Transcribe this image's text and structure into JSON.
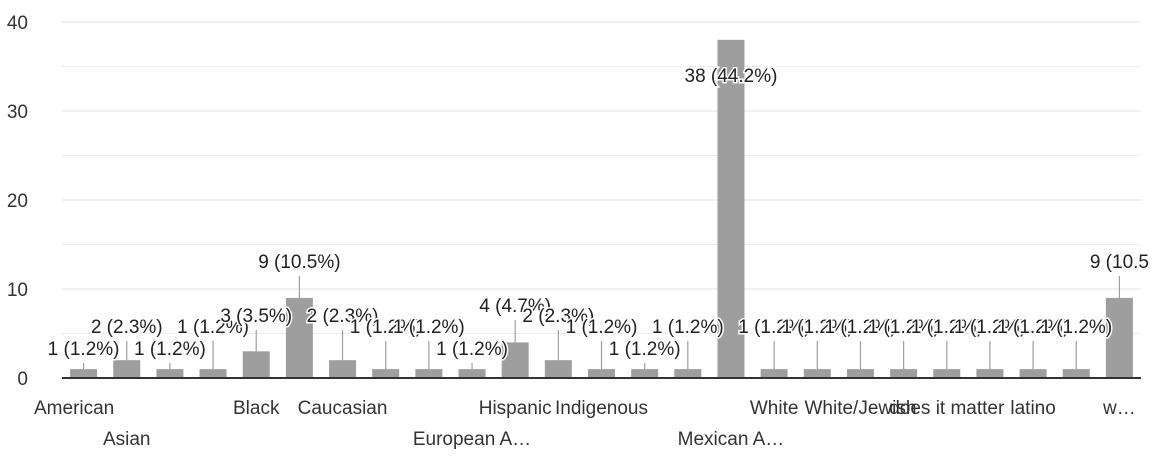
{
  "chart_data": {
    "type": "bar",
    "categories": [
      "American",
      "Asian",
      "",
      "",
      "Black",
      "",
      "Caucasian",
      "",
      "",
      "European A…",
      "Hispanic",
      "",
      "Indigenous",
      "",
      "",
      "Mexican A…",
      "White",
      "",
      "White/Jewish",
      "",
      "does it matter",
      "",
      "latino",
      "",
      "w…"
    ],
    "values": [
      1,
      2,
      1,
      1,
      3,
      9,
      2,
      1,
      1,
      1,
      4,
      2,
      1,
      1,
      1,
      38,
      1,
      1,
      1,
      1,
      1,
      1,
      1,
      1,
      9
    ],
    "data_labels": [
      "1 (1.2%)",
      "2 (2.3%)",
      "1 (1.2%)",
      "1 (1.2%)",
      "3 (3.5%)",
      "9 (10.5%)",
      "2 (2.3%)",
      "1 (1.2%)",
      "1 (1.2%)",
      "1 (1.2%)",
      "4 (4.7%)",
      "2 (2.3%)",
      "1 (1.2%)",
      "1 (1.2%)",
      "1 (1.2%)",
      "38 (44.2%)",
      "1 (1.2%)",
      "1 (1.2%)",
      "1 (1.2%)",
      "1 (1.2%)",
      "1 (1.2%)",
      "1 (1.2%)",
      "1 (1.2%)",
      "1 (1.2%)",
      "9 (10.5"
    ],
    "yticks": [
      0,
      10,
      20,
      30,
      40
    ],
    "ylim": [
      0,
      40
    ],
    "grid": true,
    "colors": {
      "bar": "#9e9e9e",
      "label": "#212121",
      "axis": "#333333",
      "grid": "#e6e6e6"
    }
  }
}
